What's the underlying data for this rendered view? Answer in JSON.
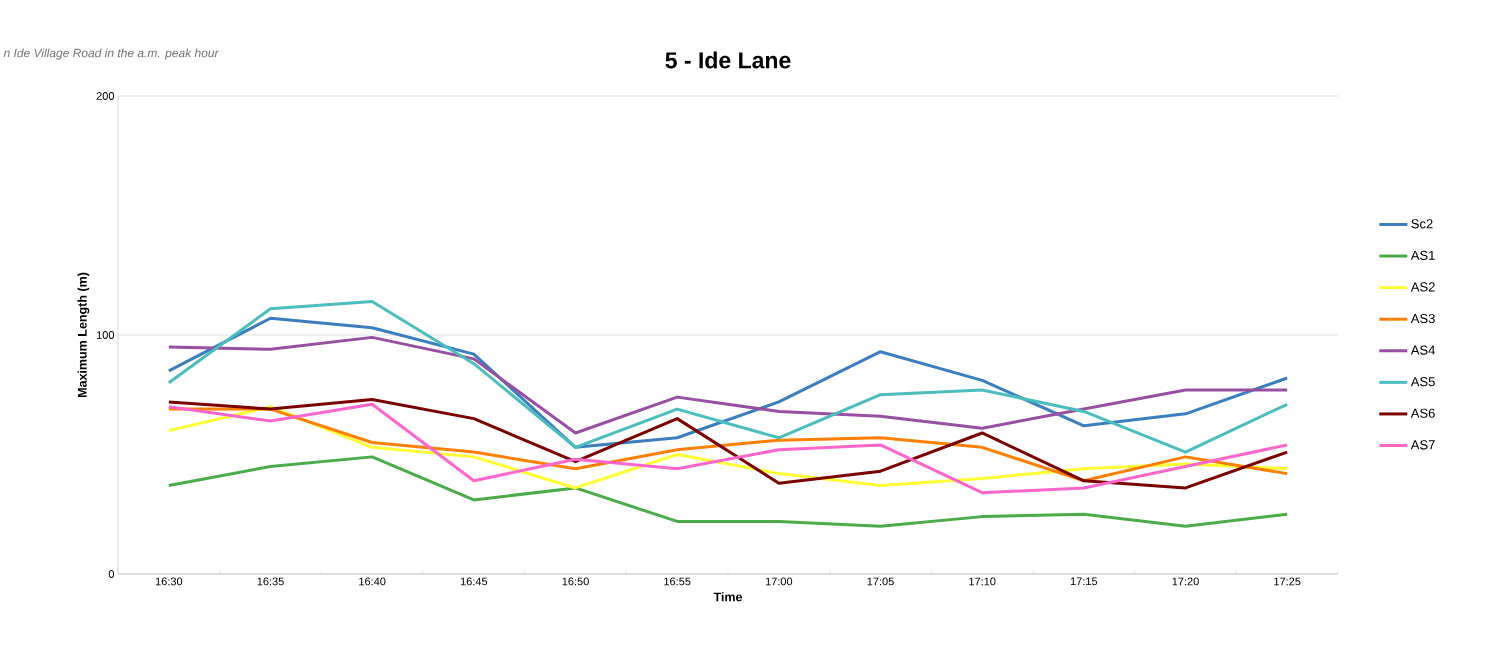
{
  "chart_data": {
    "type": "line",
    "title": "5 - Ide Lane",
    "xlabel": "Time",
    "ylabel": "Maximum Length (m)",
    "annotations": [
      "n Ide Village Road in the a.m. peak hour"
    ],
    "categories": [
      "16:30",
      "16:35",
      "16:40",
      "16:45",
      "16:50",
      "16:55",
      "17:00",
      "17:05",
      "17:10",
      "17:15",
      "17:20",
      "17:25"
    ],
    "ylim": [
      0,
      200
    ],
    "yticks": [
      0,
      100,
      200
    ],
    "grid": "y",
    "legend": "right",
    "marker": "none",
    "series": [
      {
        "name": "Sc2",
        "color": "#3a7ebf",
        "values": [
          85,
          107,
          103,
          92,
          53,
          57,
          72,
          93,
          81,
          62,
          67,
          82
        ]
      },
      {
        "name": "AS1",
        "color": "#4aac48",
        "values": [
          37,
          45,
          49,
          31,
          36,
          22,
          22,
          20,
          24,
          25,
          20,
          25
        ]
      },
      {
        "name": "AS2",
        "color": "#ffff33",
        "values": [
          60,
          70,
          53,
          49,
          36,
          50,
          42,
          37,
          40,
          44,
          46,
          44
        ]
      },
      {
        "name": "AS3",
        "color": "#ff7f00",
        "values": [
          69,
          69,
          55,
          51,
          44,
          52,
          56,
          57,
          53,
          39,
          49,
          42
        ]
      },
      {
        "name": "AS4",
        "color": "#984ea3",
        "values": [
          95,
          94,
          99,
          90,
          59,
          74,
          68,
          66,
          61,
          69,
          77,
          77
        ]
      },
      {
        "name": "AS5",
        "color": "#4bbdbd",
        "values": [
          80,
          111,
          114,
          88,
          53,
          69,
          57,
          75,
          77,
          68,
          51,
          71
        ]
      },
      {
        "name": "AS6",
        "color": "#7b0000",
        "values": [
          72,
          69,
          73,
          65,
          47,
          65,
          38,
          43,
          59,
          39,
          36,
          51
        ]
      },
      {
        "name": "AS7",
        "color": "#ff66cc",
        "values": [
          70,
          64,
          71,
          39,
          48,
          44,
          52,
          54,
          34,
          36,
          45,
          54
        ]
      }
    ]
  }
}
